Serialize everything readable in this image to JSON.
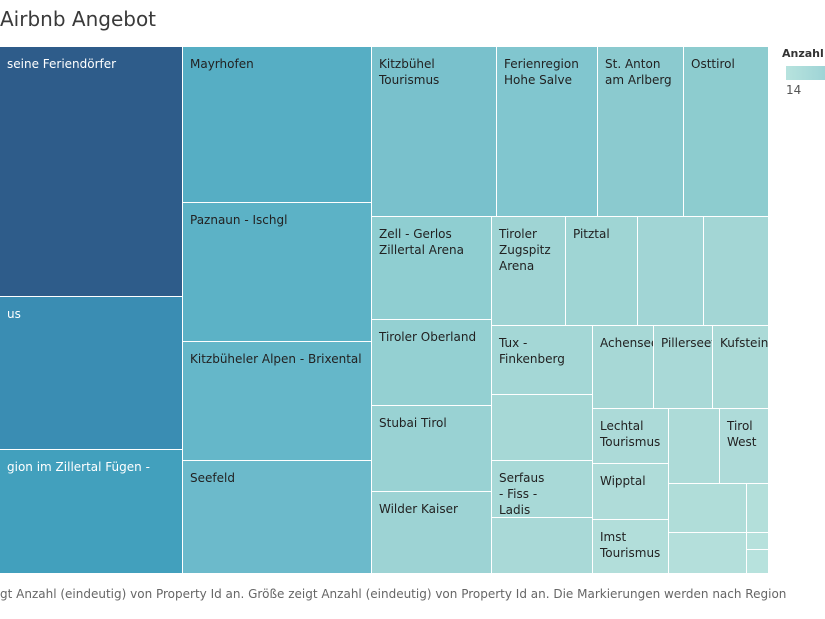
{
  "title": "Airbnb Angebot",
  "legend": {
    "title": "Anzahl (",
    "min_label": "14"
  },
  "footer": "gt Anzahl (eindeutig) von Property Id an. Größe zeigt Anzahl (eindeutig) von Property Id an. Die Markierungen werden nach Region",
  "chart_data": {
    "type": "treemap",
    "title": "Airbnb Angebot",
    "color_legend": "Anzahl (",
    "color_legend_min": 14,
    "regions": [
      {
        "label": "seine Feriendörfer",
        "color": "#2e5c8a",
        "text": "#ffffff"
      },
      {
        "label": "us",
        "color": "#3a8db3",
        "text": "#ffffff"
      },
      {
        "label": "gion im Zillertal Fügen -",
        "color": "#42a0bd",
        "text": "#ffffff"
      },
      {
        "label": "Mayrhofen",
        "color": "#56aec4",
        "text": "#222222"
      },
      {
        "label": "Paznaun - Ischgl",
        "color": "#5cb2c6",
        "text": "#222222"
      },
      {
        "label": "Kitzbüheler Alpen - Brixental",
        "color": "#65b7c9",
        "text": "#222222"
      },
      {
        "label": "Seefeld",
        "color": "#6cbacb",
        "text": "#222222"
      },
      {
        "label": "Kitzbühel\nTourismus",
        "color": "#79c1cc",
        "text": "#222222"
      },
      {
        "label": "Ferienregion\nHohe Salve",
        "color": "#81c6cf",
        "text": "#222222"
      },
      {
        "label": "St. Anton\nam Arlberg",
        "color": "#8bcacf",
        "text": "#222222"
      },
      {
        "label": "Osttirol",
        "color": "#8dcccf",
        "text": "#222222"
      },
      {
        "label": "Zell - Gerlos\nZillertal Arena",
        "color": "#8fced1",
        "text": "#222222"
      },
      {
        "label": "Tiroler Oberland",
        "color": "#94d0d2",
        "text": "#222222"
      },
      {
        "label": "Stubai Tirol",
        "color": "#99d2d3",
        "text": "#222222"
      },
      {
        "label": "Wilder Kaiser",
        "color": "#9dd3d4",
        "text": "#222222"
      },
      {
        "label": "Tiroler\nZugspitz\nArena",
        "color": "#9fd4d4",
        "text": "#222222"
      },
      {
        "label": "Pitztal",
        "color": "#9fd5d4",
        "text": "#222222"
      },
      {
        "label": "",
        "color": "#a1d5d5",
        "text": "#222222"
      },
      {
        "label": "",
        "color": "#a3d6d5",
        "text": "#222222"
      },
      {
        "label": "Tux -\nFinkenberg",
        "color": "#a4d7d6",
        "text": "#222222"
      },
      {
        "label": "Achensee",
        "color": "#a7d8d6",
        "text": "#222222"
      },
      {
        "label": "Pillerseetal",
        "color": "#a9d9d7",
        "text": "#222222"
      },
      {
        "label": "Kufsteinerland",
        "color": "#abdad7",
        "text": "#222222"
      },
      {
        "label": "",
        "color": "#a6d8d6",
        "text": "#222222"
      },
      {
        "label": "Serfaus\n- Fiss -\nLadis",
        "color": "#a8d9d7",
        "text": "#222222"
      },
      {
        "label": "",
        "color": "#a9d9d7",
        "text": "#222222"
      },
      {
        "label": "Lechtal\nTourismus",
        "color": "#acdad8",
        "text": "#222222"
      },
      {
        "label": "",
        "color": "#addbd8",
        "text": "#222222"
      },
      {
        "label": "Tirol\nWest",
        "color": "#aedbd9",
        "text": "#222222"
      },
      {
        "label": "Wipptal",
        "color": "#afdcd9",
        "text": "#222222"
      },
      {
        "label": "",
        "color": "#b0ddd9",
        "text": "#222222"
      },
      {
        "label": "",
        "color": "#b3dfda",
        "text": "#222222"
      },
      {
        "label": "Imst\nTourismus",
        "color": "#b2deda",
        "text": "#222222"
      },
      {
        "label": "",
        "color": "#b4dfdb",
        "text": "#222222"
      },
      {
        "label": "",
        "color": "#b6e1dc",
        "text": "#222222"
      },
      {
        "label": "",
        "color": "#b7e2dd",
        "text": "#222222"
      }
    ]
  }
}
